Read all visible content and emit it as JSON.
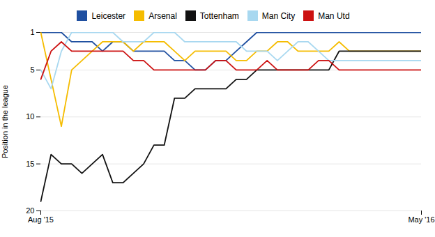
{
  "chart_data": {
    "type": "line",
    "ylabel": "Position in the league",
    "x": [
      0,
      1,
      2,
      3,
      4,
      5,
      6,
      7,
      8,
      9,
      10,
      11,
      12,
      13,
      14,
      15,
      16,
      17,
      18,
      19,
      20,
      21,
      22,
      23,
      24,
      25,
      26,
      27,
      28,
      29,
      30,
      31,
      32,
      33,
      34,
      35,
      36,
      37
    ],
    "xlim": [
      0,
      37
    ],
    "xticks": [
      {
        "value": 0,
        "label": "Aug '15"
      },
      {
        "value": 37,
        "label": "May '16"
      }
    ],
    "ylim": [
      20,
      1
    ],
    "yticks": [
      1,
      5,
      10,
      15,
      20
    ],
    "grid": true,
    "legend": "top",
    "series": [
      {
        "name": "Leicester",
        "color": "#1f4fa0",
        "values": [
          1,
          1,
          1,
          2,
          2,
          2,
          3,
          2,
          2,
          3,
          3,
          3,
          3,
          4,
          4,
          5,
          5,
          4,
          4,
          3,
          2,
          1,
          1,
          1,
          1,
          1,
          1,
          1,
          1,
          1,
          1,
          1,
          1,
          1,
          1,
          1,
          1,
          1
        ]
      },
      {
        "name": "Arsenal",
        "color": "#f5bc00",
        "values": [
          1,
          6,
          11,
          5,
          4,
          3,
          2,
          2,
          2,
          3,
          2,
          2,
          2,
          3,
          4,
          3,
          3,
          3,
          3,
          4,
          4,
          3,
          3,
          2,
          2,
          3,
          3,
          3,
          3,
          2,
          3,
          3,
          3,
          3,
          3,
          3,
          3,
          3
        ]
      },
      {
        "name": "Tottenham",
        "color": "#111111",
        "values": [
          19,
          14,
          15,
          15,
          16,
          15,
          14,
          17,
          17,
          16,
          15,
          13,
          13,
          8,
          8,
          7,
          7,
          7,
          7,
          6,
          6,
          5,
          5,
          5,
          5,
          5,
          5,
          5,
          5,
          3,
          3,
          3,
          3,
          3,
          3,
          3,
          3,
          3
        ]
      },
      {
        "name": "Man City",
        "color": "#a8d8f0",
        "values": [
          5,
          7,
          3,
          1,
          1,
          1,
          1,
          1,
          2,
          2,
          2,
          1,
          1,
          1,
          2,
          2,
          2,
          2,
          2,
          2,
          3,
          3,
          3,
          4,
          3,
          2,
          2,
          3,
          4,
          4,
          4,
          4,
          4,
          4,
          4,
          4,
          4,
          4
        ]
      },
      {
        "name": "Man Utd",
        "color": "#cc1111",
        "values": [
          6,
          3,
          2,
          3,
          3,
          3,
          3,
          3,
          3,
          4,
          4,
          5,
          5,
          5,
          5,
          5,
          5,
          4,
          4,
          5,
          5,
          5,
          4,
          5,
          5,
          5,
          5,
          4,
          4,
          5,
          5,
          5,
          5,
          5,
          5,
          5,
          5,
          5
        ]
      }
    ]
  }
}
